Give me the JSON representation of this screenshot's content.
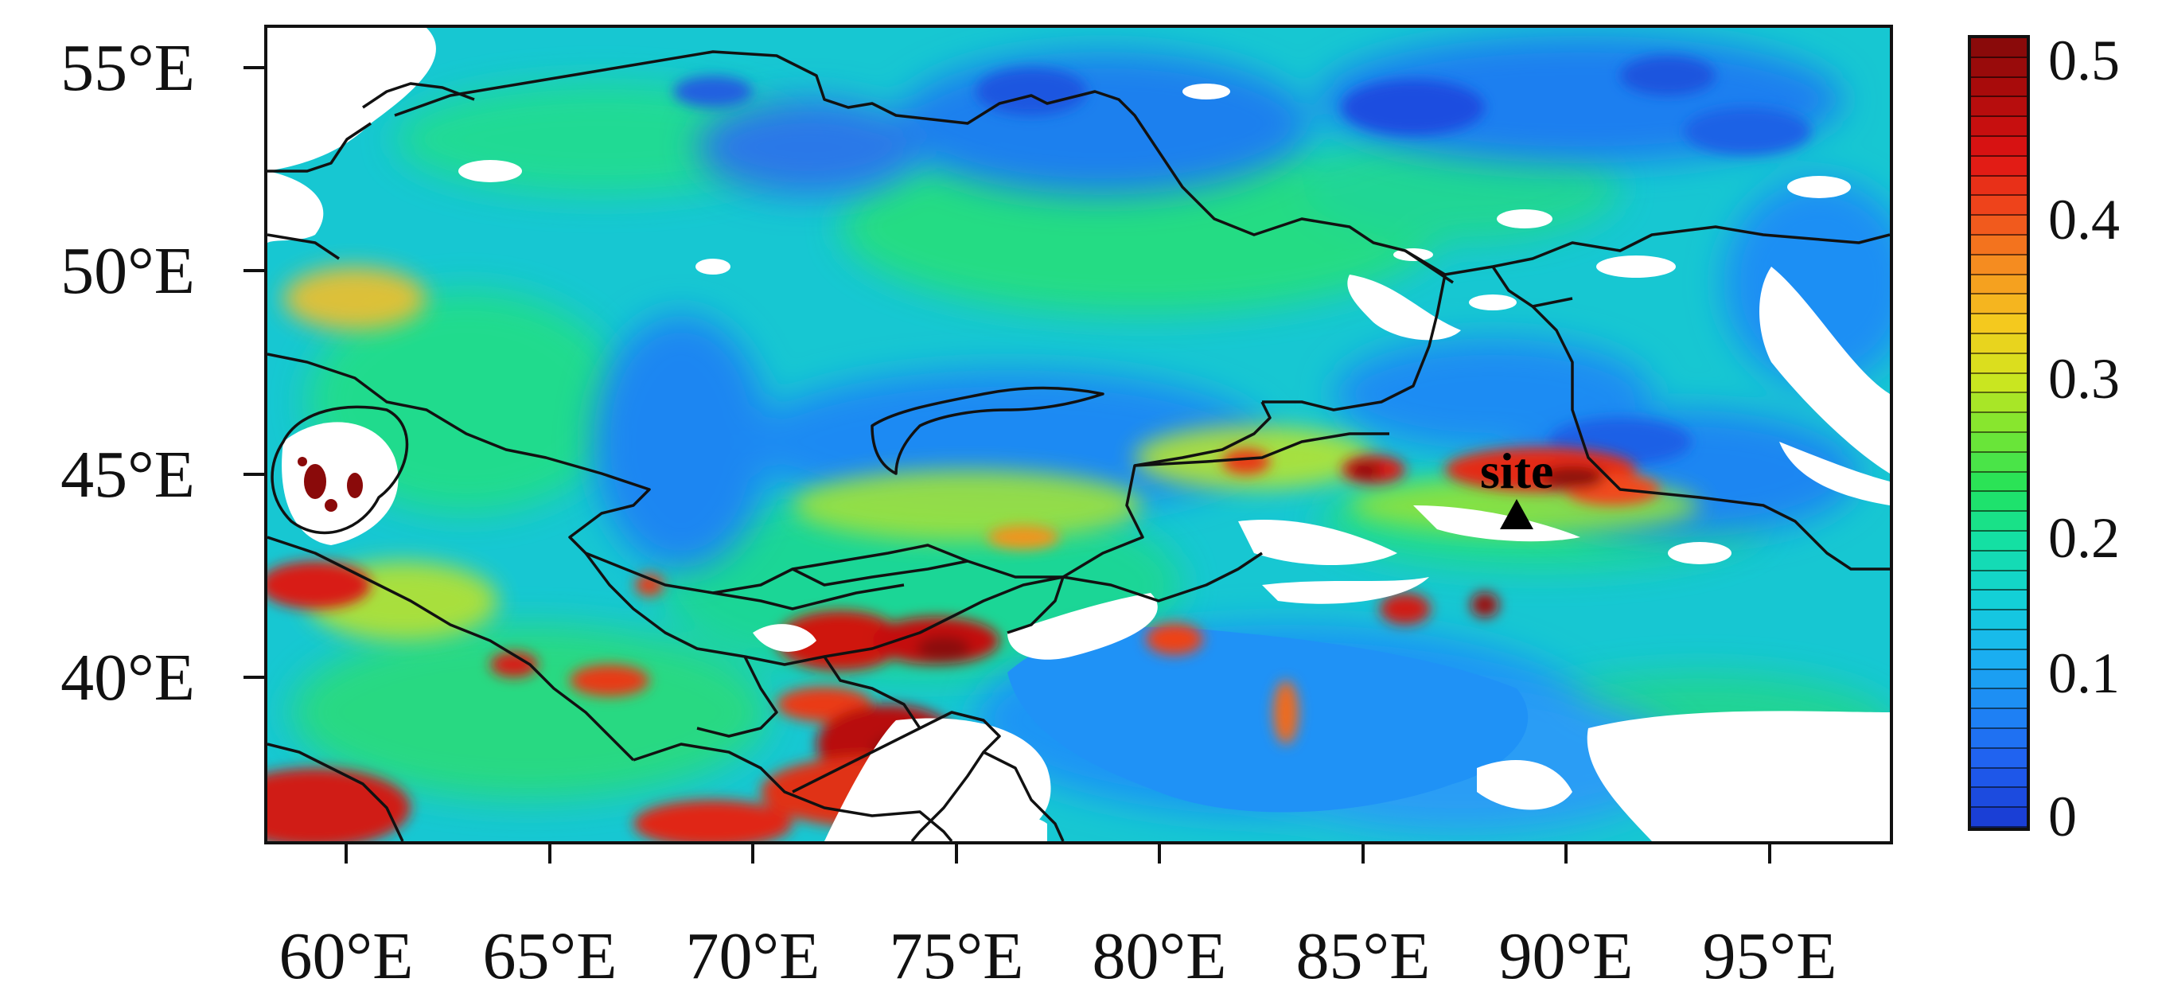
{
  "figure": {
    "y_axis_labels": [
      "55°E",
      "50°E",
      "45°E",
      "40°E"
    ],
    "y_axis_values": [
      55,
      50,
      45,
      40
    ],
    "x_axis_labels": [
      "60°E",
      "65°E",
      "70°E",
      "75°E",
      "80°E",
      "85°E",
      "90°E",
      "95°E"
    ],
    "x_axis_values": [
      60,
      65,
      70,
      75,
      80,
      85,
      90,
      95
    ],
    "lon_range": [
      58,
      98
    ],
    "lat_range": [
      36,
      56
    ],
    "site": {
      "label": "site",
      "lon": 88.8,
      "lat": 44.2,
      "marker": "triangle-icon"
    }
  },
  "colorbar": {
    "range": [
      0,
      0.5
    ],
    "tick_labels": [
      "0.5",
      "0.4",
      "0.3",
      "0.2",
      "0.1",
      "0"
    ],
    "tick_values": [
      0.5,
      0.4,
      0.3,
      0.2,
      0.1,
      0
    ],
    "segments": 40,
    "palette": [
      "#1a3fd6",
      "#2060f0",
      "#1e88f5",
      "#19b4f0",
      "#13d2d6",
      "#14e0a5",
      "#22e35a",
      "#78e632",
      "#d2e61e",
      "#f5c81e",
      "#f59020",
      "#f04a1c",
      "#e01414",
      "#b40c0c",
      "#8a0a0a"
    ]
  },
  "map_colors": {
    "land_mid": "#19c8cf",
    "deep_blue": "#1e6bf0",
    "ocean_blue": "#1f8ff7",
    "no_data": "#ffffff",
    "border": "#111111"
  }
}
